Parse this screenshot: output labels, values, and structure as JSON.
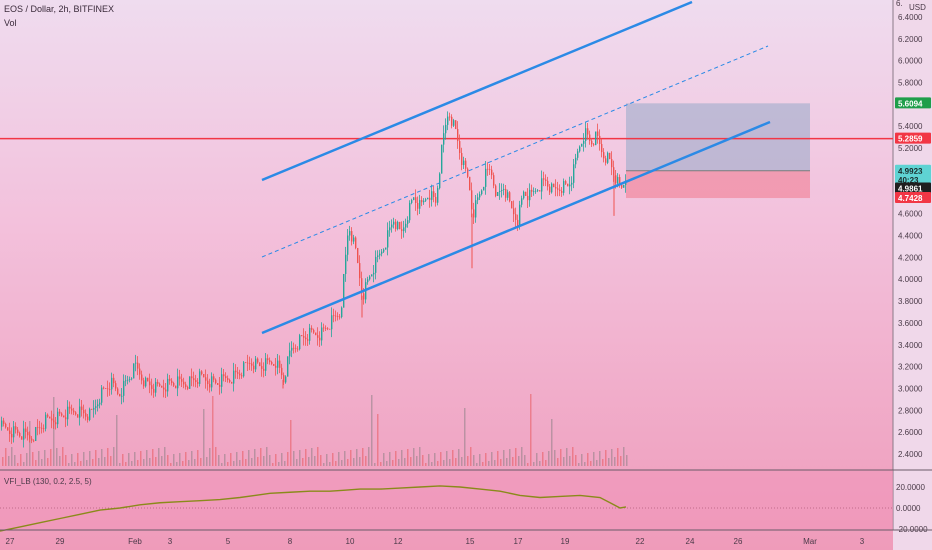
{
  "header": {
    "symbol_line": "EOS / Dollar, 2h, BITFINEX",
    "volume_label": "Vol",
    "currency": "USD"
  },
  "price_axis": {
    "ticks": [
      "6.4000",
      "6.2000",
      "6.0000",
      "5.8000",
      "5.6000",
      "5.4000",
      "5.2000",
      "5.0000",
      "4.8000",
      "4.6000",
      "4.4000",
      "4.2000",
      "4.0000",
      "3.8000",
      "3.6000",
      "3.4000",
      "3.2000",
      "3.0000",
      "2.8000",
      "2.6000",
      "2.4000"
    ],
    "top_partial": "6."
  },
  "price_tags": [
    {
      "label": "5.6094",
      "value": 5.6094,
      "color": "#1e9e4a",
      "text_color": "#ffffff"
    },
    {
      "label": "5.2859",
      "value": 5.2859,
      "color": "#f23645",
      "text_color": "#ffffff"
    },
    {
      "label": "4.9923",
      "value": 4.9923,
      "color": "#5fd3d3",
      "text_color": "#1a2a2a"
    },
    {
      "label": "40:23",
      "value": 4.91,
      "color": "#5fd3d3",
      "text_color": "#1a2a2a"
    },
    {
      "label": "4.9861",
      "value": 4.83,
      "color": "#1f1f1f",
      "text_color": "#ffffff"
    },
    {
      "label": "4.7428",
      "value": 4.7428,
      "color": "#f23645",
      "text_color": "#ffffff"
    }
  ],
  "indicator": {
    "label": "VFI_LB (130, 0.2, 2.5, 5)",
    "ticks": [
      "20.0000",
      "0.0000",
      "-20.0000"
    ],
    "line_color": "#8a8a1a"
  },
  "time_axis": {
    "labels": [
      "27",
      "29",
      "Feb",
      "3",
      "5",
      "8",
      "10",
      "12",
      "15",
      "17",
      "19",
      "22",
      "24",
      "26",
      "Mar",
      "3"
    ]
  },
  "chart_data": {
    "type": "candlestick",
    "title": "EOS / Dollar, 2h, BITFINEX",
    "ylim": [
      2.3,
      6.5
    ],
    "horizontal_level": 5.2859,
    "position_box": {
      "entry": 4.9923,
      "target": 5.6094,
      "stop": 4.7428
    },
    "colors": {
      "up": "#26a69a",
      "down": "#ef5350",
      "channel": "#2b8ae6",
      "level": "#f23645"
    },
    "close_path": [
      [
        0,
        2.65
      ],
      [
        15,
        2.6
      ],
      [
        30,
        2.55
      ],
      [
        45,
        2.7
      ],
      [
        60,
        2.75
      ],
      [
        75,
        2.8
      ],
      [
        90,
        2.75
      ],
      [
        100,
        2.95
      ],
      [
        110,
        3.05
      ],
      [
        118,
        2.95
      ],
      [
        125,
        3.05
      ],
      [
        135,
        3.2
      ],
      [
        145,
        3.05
      ],
      [
        155,
        3.0
      ],
      [
        170,
        3.05
      ],
      [
        185,
        3.05
      ],
      [
        200,
        3.1
      ],
      [
        215,
        3.05
      ],
      [
        230,
        3.1
      ],
      [
        240,
        3.15
      ],
      [
        250,
        3.25
      ],
      [
        260,
        3.2
      ],
      [
        275,
        3.25
      ],
      [
        283,
        3.08
      ],
      [
        290,
        3.35
      ],
      [
        300,
        3.45
      ],
      [
        310,
        3.5
      ],
      [
        320,
        3.5
      ],
      [
        330,
        3.6
      ],
      [
        340,
        3.7
      ],
      [
        348,
        4.5
      ],
      [
        355,
        4.25
      ],
      [
        362,
        3.85
      ],
      [
        370,
        4.05
      ],
      [
        378,
        4.2
      ],
      [
        385,
        4.35
      ],
      [
        393,
        4.55
      ],
      [
        400,
        4.4
      ],
      [
        407,
        4.6
      ],
      [
        413,
        4.75
      ],
      [
        420,
        4.65
      ],
      [
        428,
        4.8
      ],
      [
        435,
        4.7
      ],
      [
        442,
        5.25
      ],
      [
        448,
        5.55
      ],
      [
        455,
        5.35
      ],
      [
        462,
        5.05
      ],
      [
        468,
        4.9
      ],
      [
        472,
        4.6
      ],
      [
        478,
        4.75
      ],
      [
        485,
        4.95
      ],
      [
        490,
        5.0
      ],
      [
        497,
        4.75
      ],
      [
        503,
        4.85
      ],
      [
        510,
        4.65
      ],
      [
        517,
        4.55
      ],
      [
        523,
        4.8
      ],
      [
        530,
        4.75
      ],
      [
        537,
        4.85
      ],
      [
        545,
        4.9
      ],
      [
        552,
        4.8
      ],
      [
        560,
        4.85
      ],
      [
        567,
        4.85
      ],
      [
        572,
        4.95
      ],
      [
        578,
        5.2
      ],
      [
        584,
        5.35
      ],
      [
        590,
        5.25
      ],
      [
        596,
        5.3
      ],
      [
        602,
        5.15
      ],
      [
        608,
        5.1
      ],
      [
        614,
        4.95
      ],
      [
        620,
        4.8
      ],
      [
        626,
        4.95
      ]
    ],
    "vfi_path": [
      [
        0,
        -22
      ],
      [
        20,
        -18
      ],
      [
        40,
        -14
      ],
      [
        60,
        -10
      ],
      [
        80,
        -6
      ],
      [
        100,
        -2
      ],
      [
        120,
        0
      ],
      [
        140,
        3
      ],
      [
        160,
        5
      ],
      [
        180,
        6
      ],
      [
        200,
        7
      ],
      [
        220,
        8
      ],
      [
        240,
        10
      ],
      [
        255,
        12
      ],
      [
        270,
        14
      ],
      [
        290,
        15
      ],
      [
        310,
        16
      ],
      [
        330,
        16
      ],
      [
        345,
        17
      ],
      [
        360,
        18
      ],
      [
        380,
        18
      ],
      [
        400,
        19
      ],
      [
        420,
        20
      ],
      [
        440,
        21
      ],
      [
        460,
        20
      ],
      [
        480,
        18
      ],
      [
        500,
        16
      ],
      [
        520,
        12
      ],
      [
        540,
        10
      ],
      [
        560,
        11
      ],
      [
        580,
        12
      ],
      [
        600,
        10
      ],
      [
        612,
        4
      ],
      [
        620,
        0
      ],
      [
        626,
        1
      ]
    ]
  }
}
